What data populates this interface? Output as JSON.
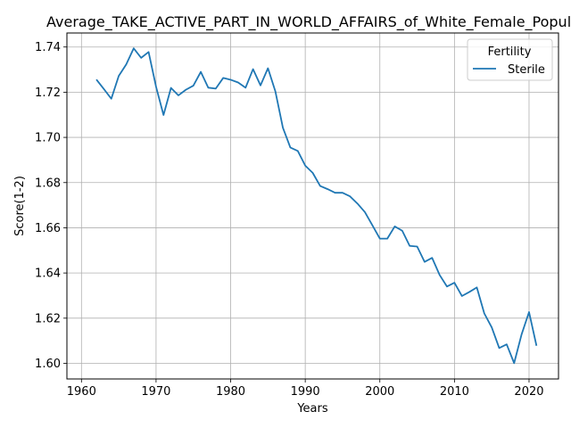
{
  "chart_data": {
    "type": "line",
    "title": "Average_TAKE_ACTIVE_PART_IN_WORLD_AFFAIRS_of_White_Female_Population",
    "xlabel": "Years",
    "ylabel": "Score(1-2)",
    "xlim": [
      1958.05,
      2023.95
    ],
    "ylim": [
      1.5931,
      1.7462
    ],
    "xticks": [
      1960,
      1970,
      1980,
      1990,
      2000,
      2010,
      2020
    ],
    "xtick_labels": [
      "1960",
      "1970",
      "1980",
      "1990",
      "2000",
      "2010",
      "2020"
    ],
    "yticks": [
      1.6,
      1.62,
      1.64,
      1.66,
      1.68,
      1.7,
      1.72,
      1.74
    ],
    "ytick_labels": [
      "1.60",
      "1.62",
      "1.64",
      "1.66",
      "1.68",
      "1.70",
      "1.72",
      "1.74"
    ],
    "grid": true,
    "legend": {
      "title": "Fertility",
      "position": "top-right"
    },
    "series": [
      {
        "name": "Sterile",
        "color": "#1f77b4",
        "x": [
          1962,
          1963,
          1964,
          1965,
          1966,
          1967,
          1968,
          1969,
          1970,
          1971,
          1972,
          1973,
          1974,
          1975,
          1976,
          1977,
          1978,
          1979,
          1980,
          1981,
          1982,
          1983,
          1984,
          1985,
          1986,
          1987,
          1988,
          1989,
          1990,
          1991,
          1992,
          1993,
          1994,
          1995,
          1996,
          1997,
          1998,
          1999,
          2000,
          2001,
          2002,
          2003,
          2004,
          2005,
          2006,
          2007,
          2008,
          2009,
          2010,
          2011,
          2012,
          2013,
          2014,
          2015,
          2016,
          2017,
          2018,
          2019,
          2020,
          2021
        ],
        "y": [
          1.7256,
          1.7214,
          1.7171,
          1.7272,
          1.7323,
          1.7394,
          1.7352,
          1.7378,
          1.7224,
          1.7099,
          1.7219,
          1.7186,
          1.7211,
          1.7229,
          1.729,
          1.722,
          1.7216,
          1.7263,
          1.7255,
          1.7243,
          1.722,
          1.7302,
          1.723,
          1.7306,
          1.7203,
          1.7043,
          1.6955,
          1.694,
          1.6875,
          1.6843,
          1.6785,
          1.6771,
          1.6755,
          1.6755,
          1.6739,
          1.6707,
          1.6669,
          1.6611,
          1.6552,
          1.6552,
          1.6606,
          1.6587,
          1.652,
          1.6517,
          1.6449,
          1.6467,
          1.6392,
          1.634,
          1.6357,
          1.6298,
          1.6316,
          1.6336,
          1.6221,
          1.6159,
          1.6068,
          1.6084,
          1.6001,
          1.6128,
          1.6227,
          1.6078
        ]
      }
    ]
  }
}
